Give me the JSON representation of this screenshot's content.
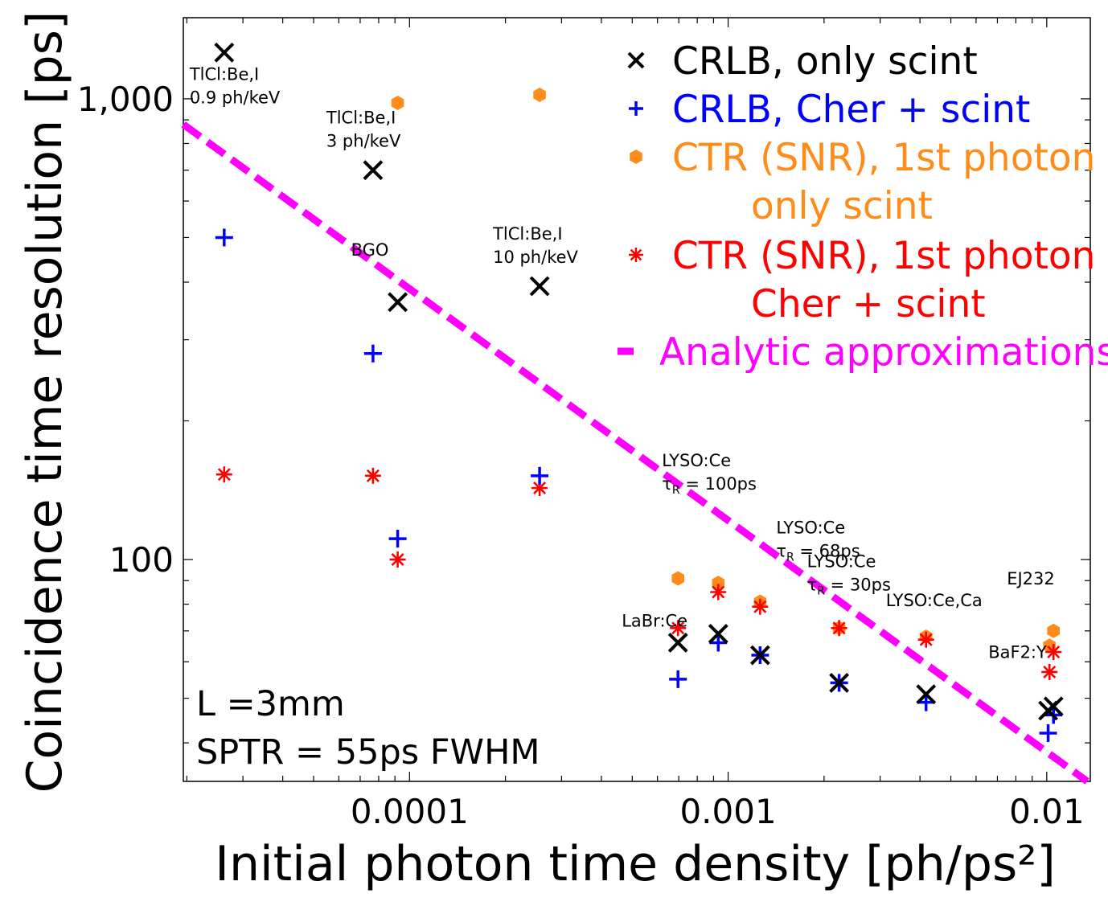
{
  "chart_data": {
    "type": "scatter",
    "xlabel": "Initial photon time density [ph/ps²]",
    "ylabel": "Coincidence time resolution [ps]",
    "xscale": "log",
    "yscale": "log",
    "xlim": [
      1.95e-05,
      0.0137
    ],
    "ylim": [
      33,
      1500
    ],
    "xticks": [
      {
        "value": 0.0001,
        "label": "0.0001"
      },
      {
        "value": 0.001,
        "label": "0.001"
      },
      {
        "value": 0.01,
        "label": "0.01"
      }
    ],
    "yticks": [
      {
        "value": 100,
        "label": "100"
      },
      {
        "value": 1000,
        "label": "1,000"
      }
    ],
    "series": [
      {
        "name": "CRLB, only scint",
        "color": "#000000",
        "marker": "x",
        "points": [
          {
            "x": 2.62e-05,
            "y": 1260
          },
          {
            "x": 7.68e-05,
            "y": 700
          },
          {
            "x": 9.18e-05,
            "y": 362
          },
          {
            "x": 0.000256,
            "y": 392
          },
          {
            "x": 0.000696,
            "y": 66
          },
          {
            "x": 0.000931,
            "y": 69
          },
          {
            "x": 0.00126,
            "y": 62
          },
          {
            "x": 0.00223,
            "y": 54
          },
          {
            "x": 0.00418,
            "y": 51
          },
          {
            "x": 0.0101,
            "y": 47
          },
          {
            "x": 0.0105,
            "y": 48
          }
        ]
      },
      {
        "name": "CRLB, Cher + scint",
        "color": "#0000ff",
        "marker": "+",
        "points": [
          {
            "x": 2.62e-05,
            "y": 500
          },
          {
            "x": 7.68e-05,
            "y": 280
          },
          {
            "x": 9.18e-05,
            "y": 111
          },
          {
            "x": 0.000256,
            "y": 152
          },
          {
            "x": 0.000696,
            "y": 55
          },
          {
            "x": 0.000931,
            "y": 66
          },
          {
            "x": 0.00126,
            "y": 62
          },
          {
            "x": 0.00223,
            "y": 54
          },
          {
            "x": 0.00418,
            "y": 49
          },
          {
            "x": 0.0101,
            "y": 42
          },
          {
            "x": 0.0105,
            "y": 46
          }
        ]
      },
      {
        "name": "CTR (SNR), 1st photon only scint",
        "color": "#ff8c1a",
        "marker": "hexagon",
        "points": [
          {
            "x": 9.18e-05,
            "y": 980
          },
          {
            "x": 0.000256,
            "y": 1020
          },
          {
            "x": 0.000696,
            "y": 91
          },
          {
            "x": 0.000931,
            "y": 89
          },
          {
            "x": 0.00126,
            "y": 81
          },
          {
            "x": 0.00223,
            "y": 71
          },
          {
            "x": 0.00418,
            "y": 68
          },
          {
            "x": 0.0102,
            "y": 65
          },
          {
            "x": 0.0105,
            "y": 70
          }
        ]
      },
      {
        "name": "CTR (SNR), 1st photon Cher + scint",
        "color": "#ff0000",
        "marker": "asterisk",
        "points": [
          {
            "x": 2.62e-05,
            "y": 153
          },
          {
            "x": 7.68e-05,
            "y": 152
          },
          {
            "x": 9.18e-05,
            "y": 100
          },
          {
            "x": 0.000256,
            "y": 143
          },
          {
            "x": 0.000696,
            "y": 71
          },
          {
            "x": 0.000931,
            "y": 85
          },
          {
            "x": 0.00126,
            "y": 79
          },
          {
            "x": 0.00223,
            "y": 71
          },
          {
            "x": 0.00418,
            "y": 67
          },
          {
            "x": 0.0102,
            "y": 57
          },
          {
            "x": 0.0105,
            "y": 63
          }
        ]
      },
      {
        "name": "Analytic approximations",
        "color": "#ff00ff",
        "marker": "dashed-line",
        "points": [
          {
            "x": 1.95e-05,
            "y": 880
          },
          {
            "x": 0.0134,
            "y": 33
          }
        ]
      }
    ],
    "legend": {
      "position": "top-right",
      "entries": [
        {
          "lines": [
            "CRLB, only scint"
          ],
          "color": "#000000",
          "marker": "x"
        },
        {
          "lines": [
            "CRLB, Cher + scint"
          ],
          "color": "#0000ff",
          "marker": "+"
        },
        {
          "lines": [
            "CTR (SNR), 1st photon",
            "only scint"
          ],
          "color": "#ff8c1a",
          "marker": "hexagon"
        },
        {
          "lines": [
            "CTR (SNR), 1st photon",
            "Cher + scint"
          ],
          "color": "#ff0000",
          "marker": "asterisk"
        },
        {
          "lines": [
            "Analytic approximations"
          ],
          "color": "#ff00ff",
          "marker": "dash"
        }
      ]
    },
    "annotations": [
      {
        "lines": [
          "TlCl:Be,I",
          "0.9 ph/keV"
        ],
        "x": 2.62e-05,
        "y": 1260,
        "anchor": "below"
      },
      {
        "lines": [
          "TlCl:Be,I",
          "3 ph/keV"
        ],
        "x": 7.68e-05,
        "y": 700,
        "anchor": "above"
      },
      {
        "lines": [
          "BGO"
        ],
        "x": 9.18e-05,
        "y": 362,
        "anchor": "above"
      },
      {
        "lines": [
          "TlCl:Be,I",
          "10 ph/keV"
        ],
        "x": 0.000256,
        "y": 392,
        "anchor": "above"
      },
      {
        "lines": [
          "LYSO:Ce",
          "τR = 100ps"
        ],
        "x": 0.000931,
        "y": 89,
        "anchor": "above-far"
      },
      {
        "lines": [
          "LYSO:Ce",
          "τR = 68ps"
        ],
        "x": 0.00126,
        "y": 81,
        "anchor": "above-mid"
      },
      {
        "lines": [
          "LYSO:Ce",
          "τR = 30ps"
        ],
        "x": 0.00223,
        "y": 71,
        "anchor": "above-near"
      },
      {
        "lines": [
          "LaBr:Ce"
        ],
        "x": 0.000696,
        "y": 91,
        "anchor": "below-left"
      },
      {
        "lines": [
          "LYSO:Ce,Ca"
        ],
        "x": 0.00418,
        "y": 68,
        "anchor": "above-left"
      },
      {
        "lines": [
          "EJ232"
        ],
        "x": 0.0105,
        "y": 70,
        "anchor": "above"
      },
      {
        "lines": [
          "BaF2:Y"
        ],
        "x": 0.0102,
        "y": 65,
        "anchor": "left"
      }
    ],
    "inset_text": [
      "L =3mm",
      "SPTR = 55ps FWHM"
    ],
    "grid": false
  }
}
